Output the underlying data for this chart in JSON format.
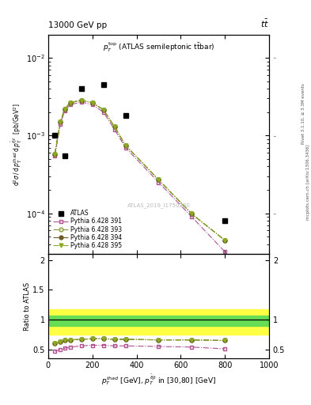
{
  "title_left": "13000 GeV pp",
  "title_right": "tt",
  "annotation": "p_T^{top} (ATLAS semileptonic ttbar)",
  "watermark": "ATLAS_2019_I1750330",
  "atlas_x": [
    30,
    75,
    150,
    250,
    350,
    800
  ],
  "atlas_y": [
    0.001,
    0.00055,
    0.004,
    0.0045,
    0.0018,
    8e-05
  ],
  "p391_x": [
    30,
    55,
    75,
    100,
    150,
    200,
    250,
    300,
    350,
    500,
    650,
    800
  ],
  "p391_y": [
    0.00055,
    0.0014,
    0.0021,
    0.0025,
    0.0027,
    0.0025,
    0.002,
    0.0012,
    0.0007,
    0.00025,
    9e-05,
    3.2e-05
  ],
  "p393_x": [
    30,
    55,
    75,
    100,
    150,
    200,
    250,
    300,
    350,
    500,
    650,
    800
  ],
  "p393_y": [
    0.00058,
    0.0015,
    0.0022,
    0.00265,
    0.00285,
    0.00265,
    0.00215,
    0.0013,
    0.00075,
    0.00027,
    9.8e-05,
    4.5e-05
  ],
  "p394_x": [
    30,
    55,
    75,
    100,
    150,
    200,
    250,
    300,
    350,
    500,
    650,
    800
  ],
  "p394_y": [
    0.00058,
    0.0015,
    0.0022,
    0.00265,
    0.00285,
    0.00265,
    0.00215,
    0.0013,
    0.00075,
    0.00027,
    9.8e-05,
    4.5e-05
  ],
  "p395_x": [
    30,
    55,
    75,
    100,
    150,
    200,
    250,
    300,
    350,
    500,
    650,
    800
  ],
  "p395_y": [
    0.00058,
    0.0015,
    0.0022,
    0.00265,
    0.00285,
    0.00265,
    0.00215,
    0.0013,
    0.00075,
    0.00027,
    9.8e-05,
    4.5e-05
  ],
  "ratio_391_x": [
    30,
    55,
    75,
    100,
    150,
    200,
    250,
    300,
    350,
    500,
    650,
    800
  ],
  "ratio_391_y": [
    0.47,
    0.5,
    0.52,
    0.54,
    0.56,
    0.57,
    0.57,
    0.56,
    0.56,
    0.55,
    0.54,
    0.51
  ],
  "ratio_393_x": [
    30,
    55,
    75,
    100,
    150,
    200,
    250,
    300,
    350,
    500,
    650,
    800
  ],
  "ratio_393_y": [
    0.6,
    0.63,
    0.65,
    0.66,
    0.67,
    0.68,
    0.68,
    0.67,
    0.67,
    0.66,
    0.66,
    0.65
  ],
  "ratio_394_x": [
    30,
    55,
    75,
    100,
    150,
    200,
    250,
    300,
    350,
    500,
    650,
    800
  ],
  "ratio_394_y": [
    0.6,
    0.63,
    0.65,
    0.66,
    0.67,
    0.68,
    0.68,
    0.67,
    0.67,
    0.66,
    0.66,
    0.65
  ],
  "ratio_395_x": [
    30,
    55,
    75,
    100,
    150,
    200,
    250,
    300,
    350,
    500,
    650,
    800
  ],
  "ratio_395_y": [
    0.6,
    0.63,
    0.65,
    0.66,
    0.67,
    0.68,
    0.68,
    0.67,
    0.67,
    0.66,
    0.66,
    0.65
  ],
  "band_green_lo": 0.9,
  "band_green_hi": 1.07,
  "band_yellow_lo": 0.75,
  "band_yellow_hi": 1.17,
  "color_391": "#B05090",
  "color_393": "#8B9A3A",
  "color_394": "#6B5A28",
  "color_395": "#8BAA22",
  "xlim": [
    0,
    1000
  ],
  "ylim_main_lo": 3e-05,
  "ylim_main_hi": 0.02,
  "ylim_ratio_lo": 0.35,
  "ylim_ratio_hi": 2.1
}
